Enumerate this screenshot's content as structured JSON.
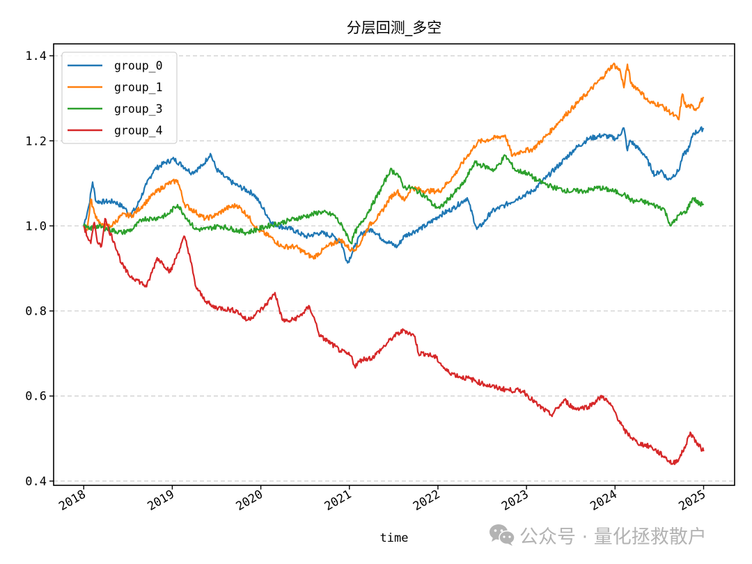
{
  "chart_data": {
    "type": "line",
    "title": "分层回测_多空",
    "xlabel": "time",
    "ylabel": "",
    "xlim": [
      2017.66,
      2025.35
    ],
    "ylim": [
      0.39,
      1.428
    ],
    "grid": {
      "axis": "y",
      "style": "dashed",
      "color": "#cccccc"
    },
    "legend_position": "upper left",
    "x_ticks": [
      2018,
      2019,
      2020,
      2021,
      2022,
      2023,
      2024,
      2025
    ],
    "x_tick_labels": [
      "2018",
      "2019",
      "2020",
      "2021",
      "2022",
      "2023",
      "2024",
      "2025"
    ],
    "y_ticks": [
      0.4,
      0.6,
      0.8,
      1.0,
      1.2,
      1.4
    ],
    "y_tick_labels": [
      "0.4",
      "0.6",
      "0.8",
      "1.0",
      "1.2",
      "1.4"
    ],
    "series": [
      {
        "name": "group_0",
        "color": "#1f77b4",
        "x": [
          2018.0,
          2018.06,
          2018.1,
          2018.14,
          2018.24,
          2018.35,
          2018.47,
          2018.51,
          2018.59,
          2018.71,
          2018.79,
          2018.91,
          2019.02,
          2019.12,
          2019.22,
          2019.34,
          2019.43,
          2019.5,
          2019.58,
          2019.69,
          2019.76,
          2019.92,
          2020.0,
          2020.12,
          2020.2,
          2020.35,
          2020.51,
          2020.67,
          2020.83,
          2020.91,
          2020.98,
          2021.06,
          2021.14,
          2021.26,
          2021.38,
          2021.54,
          2021.62,
          2021.78,
          2021.86,
          2022.02,
          2022.17,
          2022.33,
          2022.44,
          2022.52,
          2022.6,
          2022.76,
          2022.91,
          2023.07,
          2023.23,
          2023.39,
          2023.54,
          2023.7,
          2023.86,
          2024.02,
          2024.1,
          2024.14,
          2024.17,
          2024.25,
          2024.33,
          2024.45,
          2024.52,
          2024.6,
          2024.72,
          2024.76,
          2024.84,
          2024.88,
          2024.96,
          2025.0
        ],
        "values": [
          1.0,
          1.049,
          1.103,
          1.057,
          1.057,
          1.057,
          1.041,
          1.025,
          1.041,
          1.098,
          1.131,
          1.148,
          1.157,
          1.141,
          1.125,
          1.141,
          1.17,
          1.133,
          1.117,
          1.1,
          1.092,
          1.075,
          1.05,
          1.008,
          1.0,
          0.992,
          0.975,
          0.984,
          0.975,
          0.959,
          0.913,
          0.951,
          0.984,
          0.992,
          0.968,
          0.951,
          0.976,
          0.992,
          1.0,
          1.025,
          1.041,
          1.066,
          0.992,
          1.008,
          1.033,
          1.049,
          1.066,
          1.082,
          1.115,
          1.148,
          1.18,
          1.205,
          1.213,
          1.205,
          1.23,
          1.177,
          1.201,
          1.184,
          1.168,
          1.119,
          1.131,
          1.108,
          1.13,
          1.162,
          1.185,
          1.217,
          1.225,
          1.23
        ]
      },
      {
        "name": "group_1",
        "color": "#ff7f0e",
        "x": [
          2018.0,
          2018.04,
          2018.08,
          2018.12,
          2018.2,
          2018.31,
          2018.43,
          2018.55,
          2018.67,
          2018.79,
          2018.94,
          2019.06,
          2019.14,
          2019.26,
          2019.37,
          2019.49,
          2019.61,
          2019.73,
          2019.85,
          2019.96,
          2020.1,
          2020.24,
          2020.39,
          2020.51,
          2020.59,
          2020.75,
          2020.9,
          2021.02,
          2021.1,
          2021.22,
          2021.34,
          2021.46,
          2021.54,
          2021.62,
          2021.7,
          2021.86,
          2022.02,
          2022.17,
          2022.33,
          2022.45,
          2022.61,
          2022.76,
          2022.84,
          2022.94,
          2023.07,
          2023.23,
          2023.39,
          2023.54,
          2023.7,
          2023.86,
          2023.98,
          2024.06,
          2024.1,
          2024.14,
          2024.18,
          2024.27,
          2024.39,
          2024.51,
          2024.67,
          2024.72,
          2024.76,
          2024.8,
          2024.84,
          2024.92,
          2025.0
        ],
        "values": [
          1.0,
          0.99,
          1.063,
          1.03,
          1.0,
          1.0,
          1.025,
          1.025,
          1.049,
          1.075,
          1.098,
          1.107,
          1.05,
          1.033,
          1.017,
          1.025,
          1.041,
          1.049,
          1.025,
          0.992,
          0.975,
          0.951,
          0.951,
          0.935,
          0.925,
          0.951,
          0.968,
          0.943,
          0.951,
          1.0,
          1.025,
          1.066,
          1.082,
          1.059,
          1.09,
          1.082,
          1.082,
          1.115,
          1.164,
          1.197,
          1.205,
          1.213,
          1.164,
          1.176,
          1.18,
          1.213,
          1.25,
          1.282,
          1.315,
          1.35,
          1.38,
          1.364,
          1.325,
          1.38,
          1.335,
          1.32,
          1.29,
          1.285,
          1.259,
          1.25,
          1.31,
          1.28,
          1.282,
          1.275,
          1.303
        ]
      },
      {
        "name": "group_3",
        "color": "#2ca02c",
        "x": [
          2018.0,
          2018.06,
          2018.14,
          2018.28,
          2018.43,
          2018.55,
          2018.67,
          2018.79,
          2018.94,
          2019.06,
          2019.14,
          2019.26,
          2019.37,
          2019.53,
          2019.69,
          2019.84,
          2019.96,
          2020.08,
          2020.24,
          2020.39,
          2020.55,
          2020.67,
          2020.83,
          2020.94,
          2021.02,
          2021.06,
          2021.14,
          2021.26,
          2021.38,
          2021.46,
          2021.54,
          2021.62,
          2021.7,
          2021.86,
          2021.94,
          2022.02,
          2022.13,
          2022.29,
          2022.41,
          2022.53,
          2022.64,
          2022.76,
          2022.88,
          2023.0,
          2023.12,
          2023.31,
          2023.47,
          2023.66,
          2023.82,
          2023.98,
          2024.1,
          2024.2,
          2024.31,
          2024.43,
          2024.55,
          2024.63,
          2024.72,
          2024.8,
          2024.88,
          2024.96,
          2025.0
        ],
        "values": [
          1.0,
          0.992,
          1.0,
          0.992,
          0.984,
          0.992,
          1.017,
          1.017,
          1.025,
          1.05,
          1.025,
          0.992,
          0.992,
          1.0,
          0.992,
          0.984,
          0.992,
          1.0,
          1.008,
          1.017,
          1.025,
          1.033,
          1.025,
          0.992,
          0.959,
          0.984,
          1.008,
          1.05,
          1.096,
          1.131,
          1.123,
          1.09,
          1.09,
          1.07,
          1.05,
          1.041,
          1.066,
          1.1,
          1.148,
          1.14,
          1.131,
          1.165,
          1.13,
          1.125,
          1.107,
          1.09,
          1.082,
          1.082,
          1.09,
          1.082,
          1.074,
          1.058,
          1.058,
          1.049,
          1.041,
          1.0,
          1.025,
          1.033,
          1.066,
          1.05,
          1.052
        ]
      },
      {
        "name": "group_4",
        "color": "#d62728",
        "x": [
          2018.0,
          2018.04,
          2018.08,
          2018.12,
          2018.16,
          2018.2,
          2018.24,
          2018.28,
          2018.35,
          2018.43,
          2018.51,
          2018.59,
          2018.71,
          2018.83,
          2018.9,
          2018.98,
          2019.06,
          2019.14,
          2019.2,
          2019.26,
          2019.34,
          2019.45,
          2019.57,
          2019.73,
          2019.84,
          2019.94,
          2020.04,
          2020.16,
          2020.24,
          2020.31,
          2020.43,
          2020.55,
          2020.61,
          2020.67,
          2020.75,
          2020.9,
          2021.02,
          2021.06,
          2021.14,
          2021.26,
          2021.38,
          2021.5,
          2021.62,
          2021.74,
          2021.78,
          2021.86,
          2021.98,
          2022.09,
          2022.25,
          2022.37,
          2022.49,
          2022.65,
          2022.8,
          2022.96,
          2023.12,
          2023.28,
          2023.43,
          2023.54,
          2023.7,
          2023.86,
          2023.98,
          2024.1,
          2024.25,
          2024.41,
          2024.57,
          2024.65,
          2024.73,
          2024.8,
          2024.85,
          2024.92,
          2025.0
        ],
        "values": [
          1.0,
          0.975,
          0.959,
          1.008,
          0.959,
          0.952,
          1.017,
          0.992,
          0.959,
          0.91,
          0.884,
          0.875,
          0.857,
          0.925,
          0.91,
          0.892,
          0.935,
          0.975,
          0.927,
          0.86,
          0.833,
          0.81,
          0.806,
          0.8,
          0.778,
          0.792,
          0.81,
          0.843,
          0.78,
          0.775,
          0.786,
          0.81,
          0.778,
          0.74,
          0.73,
          0.706,
          0.694,
          0.67,
          0.686,
          0.69,
          0.714,
          0.74,
          0.755,
          0.74,
          0.7,
          0.7,
          0.69,
          0.66,
          0.645,
          0.64,
          0.63,
          0.62,
          0.614,
          0.612,
          0.58,
          0.555,
          0.59,
          0.57,
          0.575,
          0.6,
          0.57,
          0.52,
          0.49,
          0.48,
          0.455,
          0.44,
          0.455,
          0.485,
          0.515,
          0.49,
          0.47
        ]
      }
    ]
  },
  "watermark": {
    "icon": "wechat-icon",
    "text": "公众号 · 量化拯救散户"
  }
}
